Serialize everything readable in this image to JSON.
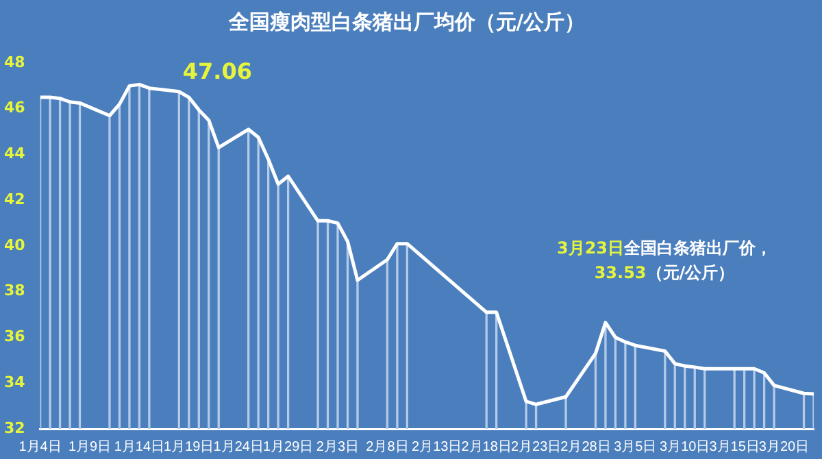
{
  "chart_data": {
    "type": "line",
    "title": "全国瘦肉型白条猪出厂均价（元/公斤）",
    "x": [
      "--01-04",
      "--01-05",
      "--01-06",
      "--01-07",
      "--01-08",
      "--01-11",
      "--01-12",
      "--01-13",
      "--01-14",
      "--01-15",
      "--01-18",
      "--01-19",
      "--01-20",
      "--01-21",
      "--01-22",
      "--01-25",
      "--01-26",
      "--01-27",
      "--01-28",
      "--01-29",
      "--02-01",
      "--02-02",
      "--02-03",
      "--02-04",
      "--02-05",
      "--02-08",
      "--02-09",
      "--02-10",
      "--02-18",
      "--02-19",
      "--02-22",
      "--02-23",
      "--02-26",
      "--03-01",
      "--03-02",
      "--03-03",
      "--03-04",
      "--03-05",
      "--03-08",
      "--03-09",
      "--03-10",
      "--03-11",
      "--03-12",
      "--03-15",
      "--03-16",
      "--03-17",
      "--03-18",
      "--03-19",
      "--03-22",
      "--03-23"
    ],
    "series": [
      {
        "type": "bar",
        "color": "#b4cbe8",
        "values": [
          46.5,
          46.5,
          46.45,
          46.3,
          46.25,
          45.7,
          46.2,
          47.0,
          47.06,
          46.9,
          46.75,
          46.5,
          45.95,
          45.5,
          44.3,
          45.1,
          44.75,
          43.8,
          42.7,
          43.05,
          41.1,
          41.1,
          41.0,
          40.2,
          38.5,
          39.4,
          40.1,
          40.1,
          37.1,
          37.1,
          33.2,
          33.07,
          33.4,
          35.3,
          36.65,
          36.0,
          35.8,
          35.65,
          35.4,
          34.85,
          34.75,
          34.7,
          34.63,
          34.63,
          34.63,
          34.63,
          34.45,
          33.9,
          33.55,
          33.53
        ]
      },
      {
        "color": "#ffffff",
        "values": [
          46.5,
          46.5,
          46.45,
          46.3,
          46.25,
          45.7,
          46.2,
          47.0,
          47.06,
          46.9,
          46.75,
          46.5,
          45.95,
          45.5,
          44.3,
          45.1,
          44.75,
          43.8,
          42.7,
          43.05,
          41.1,
          41.1,
          41.0,
          40.2,
          38.5,
          39.4,
          40.1,
          40.1,
          37.1,
          37.1,
          33.2,
          33.07,
          33.4,
          35.3,
          36.65,
          36.0,
          35.8,
          35.65,
          35.4,
          34.85,
          34.75,
          34.7,
          34.63,
          34.63,
          34.63,
          34.63,
          34.45,
          33.9,
          33.55,
          33.53
        ]
      }
    ],
    "xlim": [
      "--01-04",
      "--03-23"
    ],
    "xticks": [
      {
        "value": "--01-04",
        "label": "1月4日"
      },
      {
        "value": "--01-09",
        "label": "1月9日"
      },
      {
        "value": "--01-14",
        "label": "1月14日"
      },
      {
        "value": "--01-19",
        "label": "1月19日"
      },
      {
        "value": "--01-24",
        "label": "1月24日"
      },
      {
        "value": "--01-29",
        "label": "1月29日"
      },
      {
        "value": "--02-03",
        "label": "2月3日"
      },
      {
        "value": "--02-08",
        "label": "2月8日"
      },
      {
        "value": "--02-13",
        "label": "2月13日"
      },
      {
        "value": "--02-18",
        "label": "2月18日"
      },
      {
        "value": "--02-23",
        "label": "2月23日"
      },
      {
        "value": "--02-28",
        "label": "2月28日"
      },
      {
        "value": "--03-05",
        "label": "3月5日"
      },
      {
        "value": "--03-10",
        "label": "3月10日"
      },
      {
        "value": "--03-15",
        "label": "3月15日"
      },
      {
        "value": "--03-20",
        "label": "3月20日"
      }
    ],
    "ylim": [
      32,
      48
    ],
    "yticks": [
      32,
      34,
      36,
      38,
      40,
      42,
      44,
      46,
      48
    ],
    "marker": "none",
    "annotations": [
      {
        "text": "47.06",
        "x": "--01-14",
        "y": 47.06
      },
      "3月23日全国白条猪出厂价，",
      "33.53（元/公斤）"
    ]
  }
}
